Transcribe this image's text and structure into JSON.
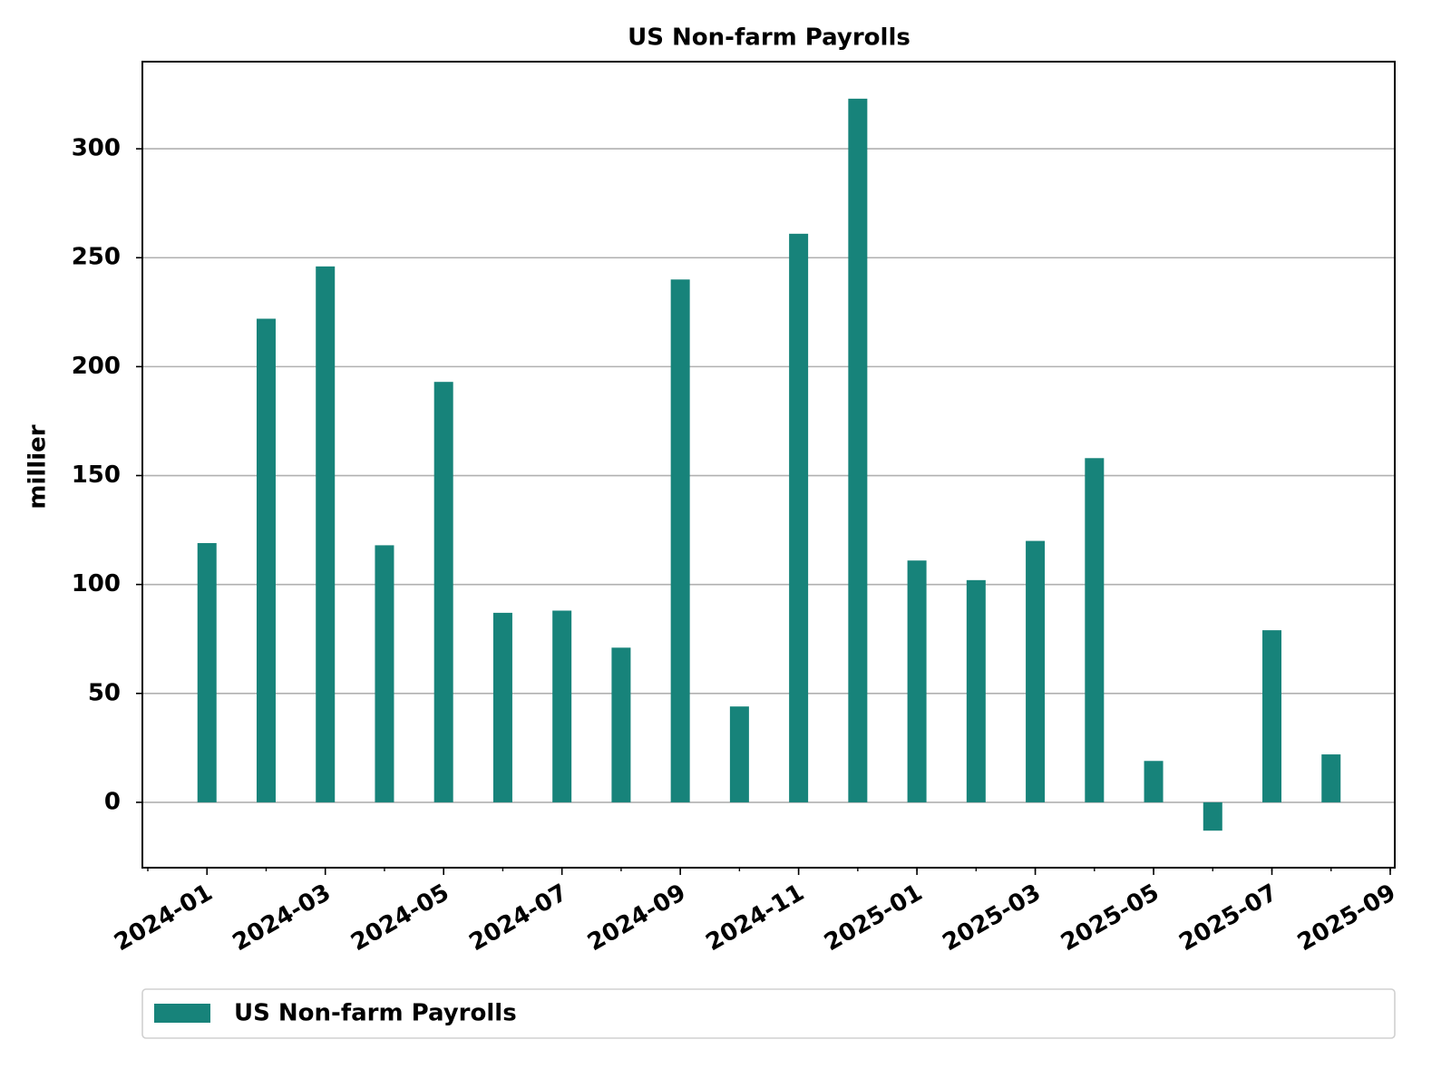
{
  "chart_data": {
    "type": "bar",
    "title": "US Non-farm Payrolls",
    "ylabel": "millier",
    "x": [
      "2024-01",
      "2024-02",
      "2024-03",
      "2024-04",
      "2024-05",
      "2024-06",
      "2024-07",
      "2024-08",
      "2024-09",
      "2024-10",
      "2024-11",
      "2024-12",
      "2025-01",
      "2025-02",
      "2025-03",
      "2025-04",
      "2025-05",
      "2025-06",
      "2025-07",
      "2025-08"
    ],
    "series": [
      {
        "name": "US Non-farm Payrolls",
        "color": "#17837a",
        "values": [
          119,
          222,
          246,
          118,
          193,
          87,
          88,
          71,
          240,
          44,
          261,
          323,
          111,
          102,
          120,
          158,
          19,
          -13,
          79,
          22
        ]
      }
    ],
    "xlim": [
      "2023-12",
      "2025-09"
    ],
    "xticks": [
      "2024-01",
      "2024-03",
      "2024-05",
      "2024-07",
      "2024-09",
      "2024-11",
      "2025-01",
      "2025-03",
      "2025-05",
      "2025-07",
      "2025-09"
    ],
    "ylim": [
      -30,
      340
    ],
    "yticks": [
      0,
      50,
      100,
      150,
      200,
      250,
      300
    ],
    "grid": true,
    "legend": "bottom"
  }
}
